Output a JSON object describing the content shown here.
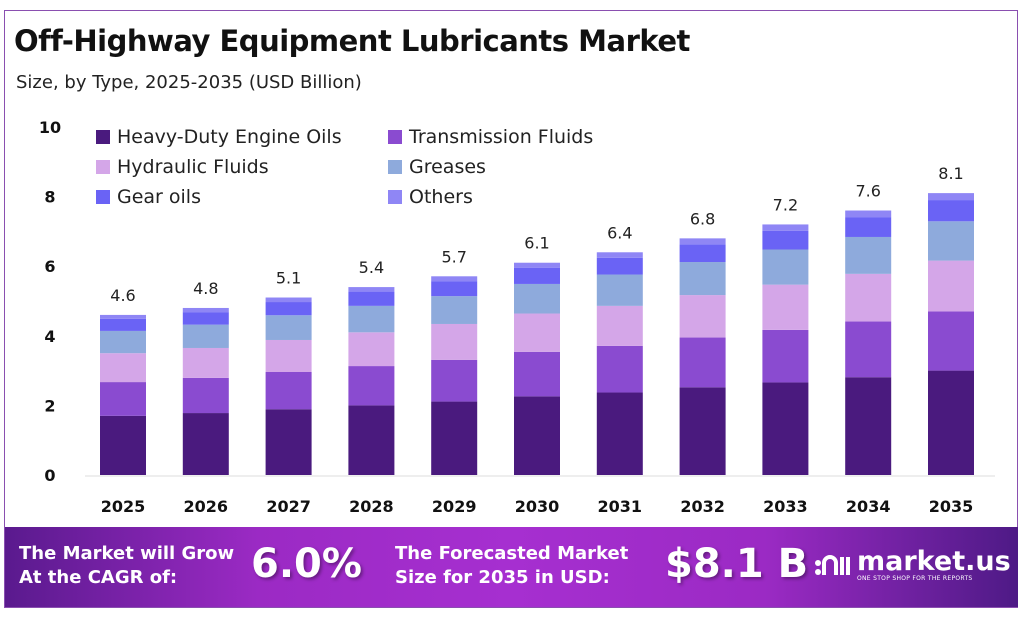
{
  "chart_data": {
    "type": "bar",
    "stacked": true,
    "title": "Off-Highway Equipment Lubricants Market",
    "subtitle": "Size, by Type, 2025-2035 (USD Billion)",
    "categories": [
      "2025",
      "2026",
      "2027",
      "2028",
      "2029",
      "2030",
      "2031",
      "2032",
      "2033",
      "2034",
      "2035"
    ],
    "totals": [
      4.6,
      4.8,
      5.1,
      5.4,
      5.7,
      6.1,
      6.4,
      6.8,
      7.2,
      7.6,
      8.1
    ],
    "total_labels": [
      "4.6",
      "4.8",
      "5.1",
      "5.4",
      "5.7",
      "6.1",
      "6.4",
      "6.8",
      "7.2",
      "7.6",
      "8.1"
    ],
    "series": [
      {
        "name": "Heavy-Duty Engine Oils",
        "color": "#4a1a7e",
        "values": [
          1.7,
          1.78,
          1.89,
          2.0,
          2.11,
          2.26,
          2.37,
          2.52,
          2.66,
          2.81,
          3.0
        ]
      },
      {
        "name": "Transmission Fluids",
        "color": "#8a4bd0",
        "values": [
          0.97,
          1.01,
          1.07,
          1.13,
          1.2,
          1.28,
          1.34,
          1.43,
          1.51,
          1.6,
          1.7
        ]
      },
      {
        "name": "Hydraulic Fluids",
        "color": "#d4a6e8",
        "values": [
          0.83,
          0.86,
          0.92,
          0.97,
          1.03,
          1.1,
          1.15,
          1.22,
          1.3,
          1.37,
          1.46
        ]
      },
      {
        "name": "Greases",
        "color": "#8eaadc",
        "values": [
          0.64,
          0.67,
          0.71,
          0.76,
          0.8,
          0.85,
          0.9,
          0.95,
          1.01,
          1.06,
          1.13
        ]
      },
      {
        "name": "Gear oils",
        "color": "#6a63f5",
        "values": [
          0.35,
          0.36,
          0.38,
          0.41,
          0.43,
          0.46,
          0.48,
          0.51,
          0.54,
          0.57,
          0.61
        ]
      },
      {
        "name": "Others",
        "color": "#8f86f5",
        "values": [
          0.11,
          0.12,
          0.13,
          0.13,
          0.14,
          0.15,
          0.16,
          0.17,
          0.18,
          0.19,
          0.2
        ]
      }
    ],
    "ylim": [
      0,
      10
    ],
    "yticks": [
      "0",
      "2",
      "4",
      "6",
      "8",
      "10"
    ],
    "grid": false,
    "legend_placement": "top-left"
  },
  "footer": {
    "cagr_text_1": "The Market will Grow",
    "cagr_text_2": "At the CAGR of:",
    "cagr_value": "6.0%",
    "forecast_text_1": "The Forecasted Market",
    "forecast_text_2": "Size for 2035 in USD:",
    "forecast_value": "$8.1 B",
    "logo_name": "market.us",
    "logo_tagline": "ONE STOP SHOP FOR THE REPORTS"
  }
}
